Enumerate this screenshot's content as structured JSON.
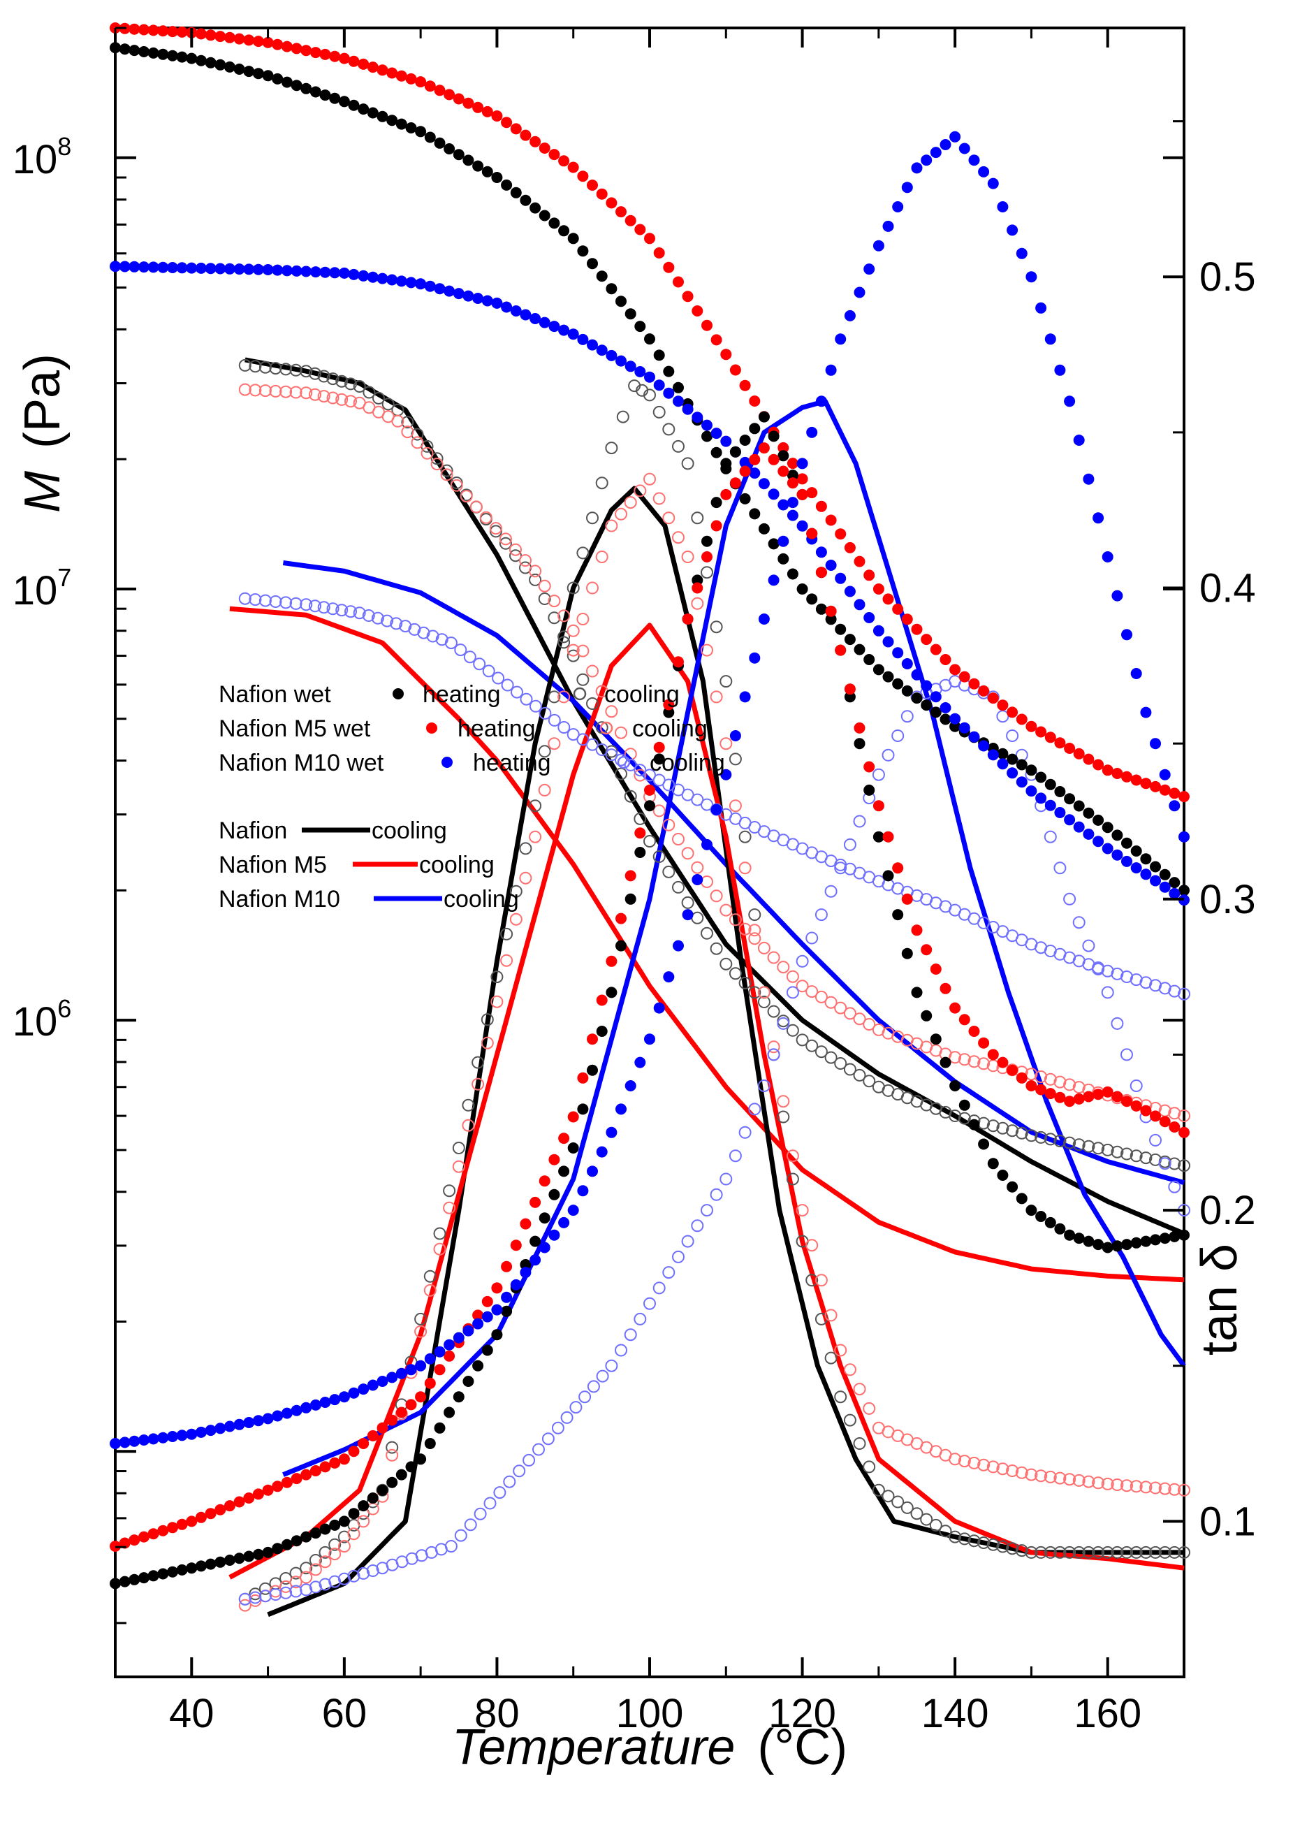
{
  "chart_data": {
    "type": "scatter",
    "x_axis": {
      "label_italic": "Temperature",
      "label_unit": "(°C)",
      "range": [
        30,
        170
      ],
      "ticks": [
        40,
        60,
        80,
        100,
        120,
        140,
        160
      ],
      "tick_labels": [
        "40",
        "60",
        "80",
        "100",
        "120",
        "140",
        "160"
      ]
    },
    "y_axis_left": {
      "label_italic": "M",
      "label_unit": "(Pa)",
      "scale": "log",
      "range": [
        30000.0,
        200000000.0
      ],
      "ticks": [
        1000000.0,
        10000000.0,
        100000000.0
      ],
      "tick_labels": [
        {
          "base": "10",
          "exp": "6"
        },
        {
          "base": "10",
          "exp": "7"
        },
        {
          "base": "10",
          "exp": "8"
        }
      ]
    },
    "y_axis_right": {
      "label": "tan δ",
      "range": [
        0.05,
        0.58
      ],
      "ticks": [
        0.1,
        0.2,
        0.3,
        0.4,
        0.5
      ],
      "tick_labels": [
        "0.1",
        "0.2",
        "0.3",
        "0.4",
        "0.5"
      ]
    },
    "colors": {
      "black": "#000000",
      "red": "#ff0000",
      "blue": "#0000ff",
      "pink": "#ff7070",
      "lightblue": "#7070ff",
      "gray": "#555555"
    },
    "legend_markers": {
      "title": "",
      "rows": [
        {
          "name": "Nafion wet",
          "heating": "heating",
          "cooling": "cooling",
          "color": "#000000",
          "open_color": "#555555"
        },
        {
          "name": "Nafion M5 wet",
          "heating": "heating",
          "cooling": "cooling",
          "color": "#ff0000",
          "open_color": "#ff7070"
        },
        {
          "name": "Nafion M10 wet",
          "heating": "heating",
          "cooling": "cooling",
          "color": "#0000ff",
          "open_color": "#7070ff"
        }
      ]
    },
    "legend_lines": {
      "rows": [
        {
          "name": "Nafion",
          "label": "cooling",
          "color": "#000000"
        },
        {
          "name": "Nafion M5",
          "label": "cooling",
          "color": "#ff0000"
        },
        {
          "name": "Nafion M10",
          "label": "cooling",
          "color": "#0000ff"
        }
      ]
    },
    "series": [
      {
        "name": "Nafion wet heating M",
        "axis": "left",
        "style": "filled",
        "color": "#000000",
        "x": [
          30,
          40,
          50,
          60,
          70,
          80,
          90,
          100,
          110,
          120,
          130,
          140,
          150,
          160,
          170
        ],
        "y": [
          180000000.0,
          170000000.0,
          155000000.0,
          135000000.0,
          115000000.0,
          90000000.0,
          65000000.0,
          38000000.0,
          19000000.0,
          10000000.0,
          6500000.0,
          4800000.0,
          3800000.0,
          2800000.0,
          2000000.0
        ]
      },
      {
        "name": "Nafion M5 wet heating M",
        "axis": "left",
        "style": "filled",
        "color": "#ff0000",
        "x": [
          30,
          40,
          50,
          60,
          70,
          80,
          90,
          100,
          110,
          120,
          130,
          140,
          150,
          160,
          170
        ],
        "y": [
          200000000.0,
          195000000.0,
          185000000.0,
          170000000.0,
          150000000.0,
          125000000.0,
          95000000.0,
          65000000.0,
          35000000.0,
          18000000.0,
          10000000.0,
          6500000.0,
          4800000.0,
          3800000.0,
          3300000.0
        ]
      },
      {
        "name": "Nafion M10 wet heating M",
        "axis": "left",
        "style": "filled",
        "color": "#0000ff",
        "x": [
          30,
          40,
          50,
          60,
          70,
          80,
          90,
          100,
          110,
          120,
          130,
          140,
          150,
          160,
          170
        ],
        "y": [
          56000000.0,
          55500000.0,
          55000000.0,
          54000000.0,
          51000000.0,
          46000000.0,
          39000000.0,
          31000000.0,
          22000000.0,
          14000000.0,
          8000000.0,
          5000000.0,
          3400000.0,
          2500000.0,
          1900000.0
        ]
      },
      {
        "name": "Nafion wet cooling M",
        "axis": "left",
        "style": "open",
        "color": "#555555",
        "x": [
          47,
          55,
          62,
          67,
          85,
          90,
          95,
          100,
          110,
          120,
          130,
          140,
          150,
          160,
          170
        ],
        "y": [
          33000000.0,
          32000000.0,
          29500000.0,
          26000000.0,
          10500000.0,
          7000000.0,
          4200000.0,
          2600000.0,
          1350000.0,
          900000.0,
          700000.0,
          600000.0,
          540000.0,
          500000.0,
          460000.0
        ]
      },
      {
        "name": "Nafion M5 wet cooling M",
        "axis": "left",
        "style": "open",
        "color": "#ff7070",
        "x": [
          47,
          55,
          62,
          67,
          85,
          90,
          95,
          100,
          110,
          120,
          130,
          140,
          150,
          160,
          170
        ],
        "y": [
          29000000.0,
          28500000.0,
          27000000.0,
          24500000.0,
          11000000.0,
          8000000.0,
          5200000.0,
          3300000.0,
          1800000.0,
          1200000.0,
          950000.0,
          820000.0,
          750000.0,
          670000.0,
          600000.0
        ]
      },
      {
        "name": "Nafion M10 wet cooling M",
        "axis": "left",
        "style": "open",
        "color": "#7070ff",
        "x": [
          47,
          55,
          62,
          68,
          74,
          90,
          100,
          110,
          120,
          130,
          140,
          150,
          160,
          170
        ],
        "y": [
          9500000.0,
          9200000.0,
          8800000.0,
          8200000.0,
          7500000.0,
          4600000.0,
          3700000.0,
          3000000.0,
          2500000.0,
          2100000.0,
          1800000.0,
          1500000.0,
          1300000.0,
          1150000.0
        ]
      },
      {
        "name": "Nafion cooling M",
        "axis": "left",
        "style": "line",
        "color": "#000000",
        "x": [
          47,
          55,
          62,
          68,
          80,
          90,
          100,
          110,
          120,
          130,
          140,
          150,
          160,
          170
        ],
        "y": [
          34000000.0,
          32000000.0,
          30000000.0,
          26000000.0,
          12000000.0,
          5500000.0,
          2800000.0,
          1500000.0,
          1000000.0,
          750000.0,
          600000.0,
          470000.0,
          380000.0,
          320000.0
        ]
      },
      {
        "name": "Nafion M5 cooling M",
        "axis": "left",
        "style": "line",
        "color": "#ff0000",
        "x": [
          45,
          55,
          65,
          75,
          80,
          90,
          100,
          110,
          120,
          130,
          140,
          150,
          160,
          170
        ],
        "y": [
          9000000.0,
          8700000.0,
          7500000.0,
          5000000.0,
          4000000.0,
          2300000.0,
          1200000.0,
          700000.0,
          450000.0,
          340000.0,
          290000.0,
          265000.0,
          255000.0,
          250000.0
        ]
      },
      {
        "name": "Nafion M10 cooling M",
        "axis": "left",
        "style": "line",
        "color": "#0000ff",
        "x": [
          52,
          60,
          70,
          80,
          90,
          100,
          110,
          120,
          130,
          140,
          150,
          160,
          170
        ],
        "y": [
          11500000.0,
          11000000.0,
          9800000.0,
          7800000.0,
          5500000.0,
          3600000.0,
          2300000.0,
          1500000.0,
          1000000.0,
          720000.0,
          550000.0,
          470000.0,
          420000.0
        ]
      },
      {
        "name": "Nafion wet heating tan δ",
        "axis": "right",
        "style": "filled",
        "color": "#000000",
        "x": [
          30,
          40,
          50,
          60,
          70,
          80,
          90,
          95,
          100,
          105,
          110,
          115,
          120,
          125,
          130,
          135,
          140,
          145,
          150,
          155,
          160,
          165,
          170
        ],
        "y": [
          0.08,
          0.085,
          0.09,
          0.1,
          0.12,
          0.16,
          0.22,
          0.27,
          0.33,
          0.39,
          0.44,
          0.455,
          0.43,
          0.38,
          0.32,
          0.27,
          0.24,
          0.215,
          0.2,
          0.192,
          0.188,
          0.19,
          0.192
        ]
      },
      {
        "name": "Nafion M5 wet heating tan δ",
        "axis": "right",
        "style": "filled",
        "color": "#ff0000",
        "x": [
          30,
          40,
          50,
          60,
          70,
          80,
          90,
          95,
          100,
          105,
          110,
          115,
          120,
          125,
          130,
          135,
          140,
          145,
          150,
          155,
          160,
          165,
          170
        ],
        "y": [
          0.092,
          0.1,
          0.11,
          0.12,
          0.14,
          0.175,
          0.23,
          0.28,
          0.335,
          0.39,
          0.43,
          0.445,
          0.43,
          0.38,
          0.33,
          0.29,
          0.265,
          0.25,
          0.24,
          0.235,
          0.238,
          0.232,
          0.225
        ]
      },
      {
        "name": "Nafion M10 wet heating tan δ",
        "axis": "right",
        "style": "filled",
        "color": "#0000ff",
        "x": [
          30,
          40,
          50,
          60,
          70,
          80,
          90,
          95,
          100,
          105,
          110,
          115,
          120,
          125,
          130,
          135,
          140,
          145,
          150,
          155,
          160,
          165,
          170
        ],
        "y": [
          0.125,
          0.128,
          0.133,
          0.14,
          0.15,
          0.168,
          0.2,
          0.225,
          0.255,
          0.295,
          0.34,
          0.39,
          0.44,
          0.48,
          0.51,
          0.535,
          0.545,
          0.53,
          0.5,
          0.46,
          0.41,
          0.36,
          0.32
        ]
      },
      {
        "name": "Nafion wet cooling tan δ",
        "axis": "right",
        "style": "open",
        "color": "#555555",
        "x": [
          47,
          55,
          60,
          65,
          85,
          90,
          95,
          98,
          100,
          105,
          110,
          115,
          120,
          125,
          130,
          140,
          150,
          160,
          170
        ],
        "y": [
          0.075,
          0.085,
          0.095,
          0.11,
          0.33,
          0.4,
          0.445,
          0.465,
          0.462,
          0.44,
          0.37,
          0.27,
          0.19,
          0.14,
          0.11,
          0.095,
          0.09,
          0.09,
          0.09
        ]
      },
      {
        "name": "Nafion M5 wet cooling tan δ",
        "axis": "right",
        "style": "open",
        "color": "#ff7070",
        "x": [
          47,
          55,
          60,
          65,
          85,
          90,
          95,
          100,
          105,
          110,
          115,
          120,
          125,
          130,
          140,
          150,
          160,
          170
        ],
        "y": [
          0.073,
          0.082,
          0.092,
          0.108,
          0.32,
          0.38,
          0.42,
          0.435,
          0.41,
          0.35,
          0.27,
          0.2,
          0.155,
          0.13,
          0.12,
          0.115,
          0.112,
          0.11
        ]
      },
      {
        "name": "Nafion M10 wet cooling tan δ",
        "axis": "right",
        "style": "open",
        "color": "#7070ff",
        "x": [
          47,
          55,
          65,
          74,
          88,
          95,
          100,
          105,
          110,
          115,
          120,
          125,
          130,
          135,
          140,
          145,
          150,
          155,
          160,
          165,
          170
        ],
        "y": [
          0.075,
          0.078,
          0.085,
          0.092,
          0.13,
          0.15,
          0.17,
          0.19,
          0.21,
          0.24,
          0.28,
          0.31,
          0.34,
          0.365,
          0.37,
          0.365,
          0.34,
          0.3,
          0.27,
          0.23,
          0.2
        ]
      },
      {
        "name": "Nafion cooling tan δ",
        "axis": "right",
        "style": "line",
        "color": "#000000",
        "x": [
          50,
          60,
          68,
          75,
          80,
          85,
          90,
          95,
          98,
          102,
          107,
          112,
          117,
          122,
          127,
          132,
          140,
          150,
          160,
          170
        ],
        "y": [
          0.07,
          0.08,
          0.1,
          0.2,
          0.28,
          0.35,
          0.4,
          0.425,
          0.432,
          0.42,
          0.37,
          0.28,
          0.2,
          0.15,
          0.12,
          0.1,
          0.095,
          0.09,
          0.09,
          0.09
        ]
      },
      {
        "name": "Nafion M5 cooling tan δ",
        "axis": "right",
        "style": "line",
        "color": "#ff0000",
        "x": [
          45,
          55,
          62,
          70,
          80,
          90,
          95,
          100,
          105,
          110,
          115,
          120,
          125,
          130,
          140,
          150,
          160,
          170
        ],
        "y": [
          0.082,
          0.095,
          0.11,
          0.16,
          0.25,
          0.34,
          0.375,
          0.388,
          0.37,
          0.32,
          0.25,
          0.19,
          0.15,
          0.12,
          0.1,
          0.09,
          0.088,
          0.085
        ]
      },
      {
        "name": "Nafion M10 cooling tan δ",
        "axis": "right",
        "style": "line",
        "color": "#0000ff",
        "x": [
          52,
          60,
          70,
          80,
          90,
          100,
          105,
          110,
          115,
          120,
          123,
          127,
          132,
          137,
          142,
          147,
          152,
          157,
          162,
          167,
          170
        ],
        "y": [
          0.115,
          0.123,
          0.135,
          0.16,
          0.21,
          0.3,
          0.36,
          0.42,
          0.45,
          0.458,
          0.46,
          0.44,
          0.4,
          0.36,
          0.31,
          0.27,
          0.235,
          0.205,
          0.185,
          0.16,
          0.15
        ]
      }
    ]
  }
}
